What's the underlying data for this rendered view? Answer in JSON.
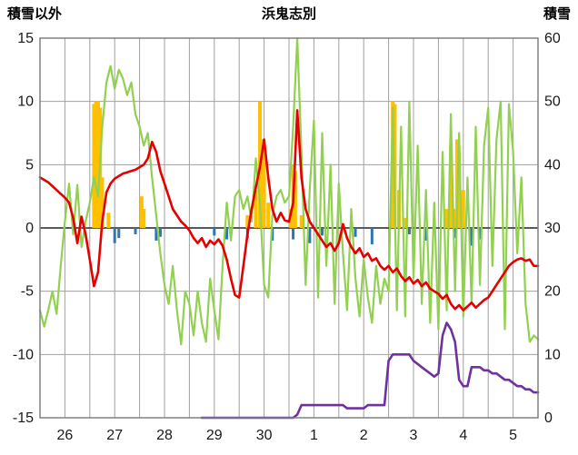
{
  "header": {
    "left_axis_title": "積雪以外",
    "title": "浜鬼志別",
    "right_axis_title": "積雪"
  },
  "chart_data": {
    "type": "line",
    "title": "浜鬼志別",
    "left_axis": {
      "label": "積雪以外",
      "range": [
        -15,
        15
      ],
      "ticks": [
        15,
        10,
        5,
        0,
        -5,
        -10,
        -15
      ]
    },
    "right_axis": {
      "label": "積雪",
      "range": [
        0,
        60
      ],
      "ticks": [
        60,
        50,
        40,
        30,
        20,
        10,
        0
      ]
    },
    "x_axis": {
      "day_labels": [
        "26",
        "27",
        "28",
        "29",
        "30",
        "1",
        "2",
        "3",
        "4",
        "5"
      ],
      "hours_per_day": 24,
      "total_hours": 240,
      "gridline_every_hours": 12
    },
    "sample_step_hours": 2,
    "grid_on": true,
    "legend": "none",
    "colors": {
      "grid": "#a0a0a0",
      "zero_line": "#595959",
      "border": "#808080",
      "tick_text": "#1a1a1a"
    },
    "series": [
      {
        "name": "green-line",
        "type": "line",
        "axis": "left",
        "color": "#92d050",
        "width": 2.2,
        "values": [
          -6.5,
          -7.8,
          -6.5,
          -5.0,
          -6.8,
          -3.0,
          0.5,
          3.5,
          -0.5,
          3.4,
          -1.5,
          0.5,
          2.0,
          4.0,
          2.5,
          8.0,
          11.5,
          12.8,
          11.0,
          12.5,
          11.8,
          10.5,
          11.5,
          9.0,
          8.0,
          6.5,
          7.5,
          4.0,
          1.0,
          -2.0,
          -4.5,
          -6.0,
          -3.0,
          -6.5,
          -9.2,
          -5.0,
          -6.0,
          -8.5,
          -5.0,
          -7.5,
          -9.0,
          -4.0,
          -6.5,
          -8.8,
          -3.0,
          2.0,
          -1.0,
          2.5,
          3.0,
          1.5,
          2.5,
          0.5,
          5.5,
          2.0,
          -4.5,
          -5.5,
          1.0,
          2.5,
          3.0,
          2.0,
          2.5,
          8.0,
          15.0,
          6.0,
          -4.5,
          3.0,
          8.5,
          -5.5,
          7.5,
          -3.0,
          5.0,
          -6.0,
          3.5,
          -2.0,
          -6.5,
          1.5,
          -4.0,
          -7.0,
          -2.5,
          -5.5,
          -7.5,
          -3.0,
          -6.0,
          -4.0,
          -5.0,
          9.5,
          -6.5,
          8.0,
          -7.0,
          10.0,
          -4.0,
          6.5,
          -6.0,
          3.0,
          -7.5,
          2.0,
          -8.0,
          6.0,
          -6.5,
          9.0,
          -5.0,
          7.5,
          -7.0,
          4.0,
          -6.0,
          8.0,
          -4.5,
          6.5,
          9.5,
          -3.0,
          7.0,
          10.0,
          -8.0,
          9.8,
          6.0,
          -2.0,
          4.0,
          -6.0,
          -9.0,
          -8.5,
          -8.8
        ]
      },
      {
        "name": "red-line",
        "type": "line",
        "axis": "left",
        "color": "#e50000",
        "width": 2.6,
        "values": [
          4.0,
          3.8,
          3.6,
          3.3,
          3.0,
          2.7,
          2.4,
          2.0,
          0.8,
          -1.2,
          0.9,
          -0.5,
          -2.5,
          -4.6,
          -3.5,
          0.5,
          2.8,
          3.5,
          3.9,
          4.1,
          4.3,
          4.4,
          4.5,
          4.6,
          4.8,
          5.0,
          5.5,
          6.8,
          6.0,
          4.5,
          3.5,
          2.5,
          1.5,
          1.0,
          0.5,
          0.2,
          -0.2,
          -0.8,
          -1.2,
          -0.8,
          -1.5,
          -1.0,
          -1.3,
          -0.9,
          -1.4,
          -2.5,
          -4.0,
          -5.3,
          -5.5,
          -3.0,
          -0.5,
          1.5,
          3.2,
          4.8,
          7.0,
          4.0,
          1.5,
          0.5,
          1.2,
          0.6,
          0.5,
          2.0,
          9.3,
          4.0,
          1.5,
          0.5,
          0.0,
          -0.5,
          -1.0,
          -1.5,
          -1.2,
          -1.8,
          -1.2,
          0.3,
          -0.8,
          -1.5,
          -2.0,
          -1.6,
          -2.3,
          -2.0,
          -2.6,
          -2.4,
          -3.0,
          -3.3,
          -3.0,
          -3.5,
          -3.2,
          -3.8,
          -4.2,
          -3.9,
          -4.4,
          -4.1,
          -4.6,
          -4.3,
          -4.8,
          -5.0,
          -5.2,
          -5.6,
          -5.3,
          -6.0,
          -6.4,
          -6.1,
          -6.5,
          -6.2,
          -5.9,
          -6.3,
          -6.0,
          -5.7,
          -5.5,
          -5.0,
          -4.5,
          -4.0,
          -3.5,
          -3.0,
          -2.7,
          -2.5,
          -2.4,
          -2.6,
          -2.5,
          -3.0,
          -3.0
        ]
      },
      {
        "name": "purple-line",
        "type": "line",
        "axis": "right",
        "color": "#7030a0",
        "width": 2.6,
        "values": [
          null,
          null,
          null,
          null,
          null,
          null,
          null,
          null,
          null,
          null,
          null,
          null,
          null,
          null,
          null,
          null,
          null,
          null,
          null,
          null,
          null,
          null,
          null,
          null,
          null,
          null,
          null,
          null,
          null,
          null,
          null,
          null,
          null,
          null,
          null,
          null,
          null,
          null,
          null,
          0,
          0,
          0,
          0,
          0,
          0,
          0,
          0,
          0,
          0,
          0,
          0,
          0,
          0,
          0,
          0,
          0,
          0,
          0,
          0,
          0,
          0,
          0,
          0.5,
          2,
          2,
          2,
          2,
          2,
          2,
          2,
          2,
          2,
          2,
          2,
          1.5,
          1.5,
          1.5,
          1.5,
          1.5,
          2,
          2,
          2,
          2,
          2,
          9,
          10,
          10,
          10,
          10,
          10,
          9,
          8.5,
          8,
          7.5,
          7,
          6.5,
          7,
          13,
          15,
          14,
          12,
          6,
          5,
          5,
          8,
          8,
          8,
          7.5,
          7.5,
          7,
          7,
          6.5,
          6,
          6,
          5.5,
          5,
          5,
          4.5,
          4.5,
          4,
          4
        ]
      }
    ],
    "bars": [
      {
        "name": "orange-bars",
        "axis": "left",
        "color": "#ffc000",
        "width": 4,
        "points": [
          [
            26,
            9.8
          ],
          [
            27,
            10
          ],
          [
            28,
            10
          ],
          [
            29,
            9.5
          ],
          [
            30,
            4
          ],
          [
            33,
            1.2
          ],
          [
            49,
            2.5
          ],
          [
            50,
            1.5
          ],
          [
            100,
            1
          ],
          [
            104,
            3
          ],
          [
            106,
            10
          ],
          [
            107,
            7
          ],
          [
            108,
            6.5
          ],
          [
            110,
            2
          ],
          [
            121,
            1.5
          ],
          [
            122,
            5
          ],
          [
            123,
            4.5
          ],
          [
            126,
            1
          ],
          [
            170,
            10
          ],
          [
            171,
            9.8
          ],
          [
            173,
            3
          ],
          [
            176,
            0.8
          ],
          [
            196,
            1.5
          ],
          [
            198,
            6.5
          ],
          [
            200,
            1.5
          ],
          [
            201,
            7
          ],
          [
            202,
            6
          ],
          [
            204,
            3
          ]
        ]
      },
      {
        "name": "blue-bars",
        "axis": "left",
        "color": "#2e75b6",
        "width": 3,
        "points": [
          [
            36,
            -1.2
          ],
          [
            38,
            -0.8
          ],
          [
            46,
            -0.5
          ],
          [
            56,
            -1.0
          ],
          [
            58,
            -0.7
          ],
          [
            84,
            -0.6
          ],
          [
            90,
            -0.9
          ],
          [
            100,
            -0.8
          ],
          [
            112,
            -1.0
          ],
          [
            122,
            -0.9
          ],
          [
            130,
            -1.2
          ],
          [
            136,
            -0.6
          ],
          [
            152,
            -0.7
          ],
          [
            160,
            -1.3
          ],
          [
            178,
            -0.5
          ],
          [
            186,
            -1.0
          ],
          [
            200,
            -0.8
          ],
          [
            208,
            -1.4
          ],
          [
            212,
            -0.9
          ]
        ]
      }
    ]
  }
}
